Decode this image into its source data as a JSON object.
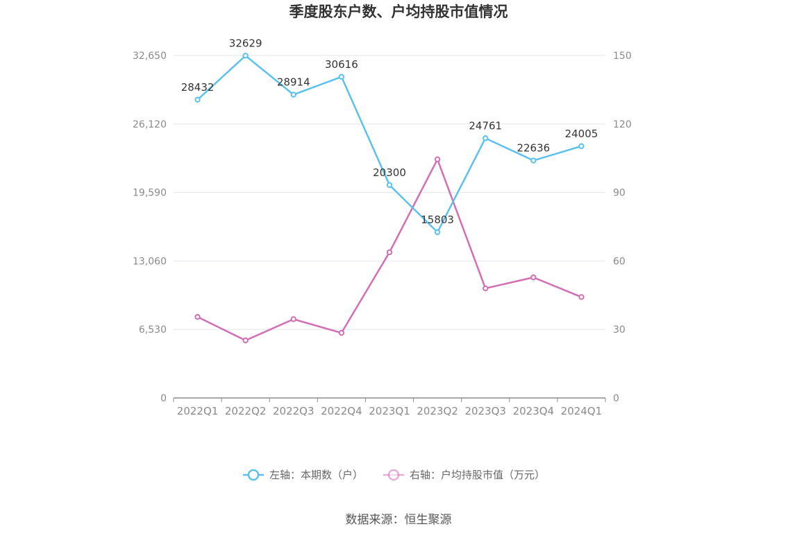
{
  "chart_data": {
    "type": "line",
    "title": "季度股东户数、户均持股市值情况",
    "categories": [
      "2022Q1",
      "2022Q2",
      "2022Q3",
      "2022Q4",
      "2023Q1",
      "2023Q2",
      "2023Q3",
      "2023Q4",
      "2024Q1"
    ],
    "left_axis": {
      "ylim": [
        0,
        32650
      ],
      "ticks": [
        "0",
        "6,530",
        "13,060",
        "19,590",
        "26,120",
        "32,650"
      ]
    },
    "right_axis": {
      "ylim": [
        0,
        150
      ],
      "ticks": [
        "0",
        "30",
        "60",
        "90",
        "120",
        "150"
      ]
    },
    "series": [
      {
        "name": "左轴：本期数（户）",
        "axis": "left",
        "color": "#5bc0f0",
        "values": [
          28432,
          32629,
          28914,
          30616,
          20300,
          15803,
          24761,
          22636,
          24005
        ],
        "labels": [
          "28432",
          "32629",
          "28914",
          "30616",
          "20300",
          "15803",
          "24761",
          "22636",
          "24005"
        ]
      },
      {
        "name": "右轴：户均持股市值（万元）",
        "axis": "right",
        "color": "#d26eb4",
        "values": [
          35.5,
          25.2,
          34.5,
          28.5,
          63.8,
          104.5,
          48.0,
          52.8,
          44.2
        ]
      }
    ],
    "grid": true,
    "legend_position": "bottom",
    "source": "数据来源：恒生聚源"
  }
}
